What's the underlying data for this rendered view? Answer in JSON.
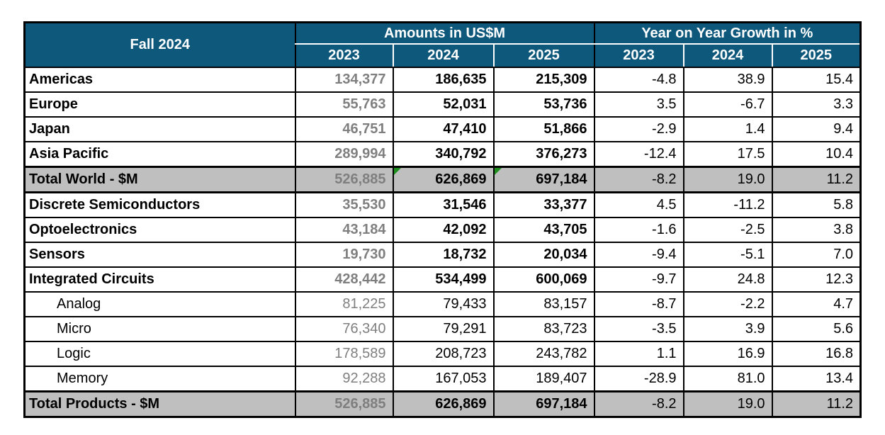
{
  "colors": {
    "header_bg": "#0e587c",
    "header_text": "#ffffff",
    "total_row_bg": "#bfbfbf",
    "muted_2023_text": "#7f7f7f",
    "grid_border": "#000000",
    "flag_triangle_green": "#1e8e1e"
  },
  "chart_data": {
    "type": "table",
    "title": "Fall 2024",
    "column_groups": [
      {
        "label": "Amounts in US$M",
        "columns": [
          "2023",
          "2024",
          "2025"
        ]
      },
      {
        "label": "Year on Year Growth in %",
        "columns": [
          "2023",
          "2024",
          "2025"
        ]
      }
    ],
    "rows": [
      {
        "label": "Americas",
        "style": "region",
        "amounts": [
          "134,377",
          "186,635",
          "215,309"
        ],
        "growth": [
          "-4.8",
          "38.9",
          "15.4"
        ]
      },
      {
        "label": "Europe",
        "style": "region",
        "amounts": [
          "55,763",
          "52,031",
          "53,736"
        ],
        "growth": [
          "3.5",
          "-6.7",
          "3.3"
        ]
      },
      {
        "label": "Japan",
        "style": "region",
        "amounts": [
          "46,751",
          "47,410",
          "51,866"
        ],
        "growth": [
          "-2.9",
          "1.4",
          "9.4"
        ]
      },
      {
        "label": "Asia Pacific",
        "style": "region",
        "amounts": [
          "289,994",
          "340,792",
          "376,273"
        ],
        "growth": [
          "-12.4",
          "17.5",
          "10.4"
        ]
      },
      {
        "label": "Total World - $M",
        "style": "total",
        "markers": [
          false,
          true,
          true
        ],
        "amounts": [
          "526,885",
          "626,869",
          "697,184"
        ],
        "growth": [
          "-8.2",
          "19.0",
          "11.2"
        ]
      },
      {
        "label": "Discrete Semiconductors",
        "style": "region",
        "amounts": [
          "35,530",
          "31,546",
          "33,377"
        ],
        "growth": [
          "4.5",
          "-11.2",
          "5.8"
        ]
      },
      {
        "label": "Optoelectronics",
        "style": "region",
        "amounts": [
          "43,184",
          "42,092",
          "43,705"
        ],
        "growth": [
          "-1.6",
          "-2.5",
          "3.8"
        ]
      },
      {
        "label": "Sensors",
        "style": "region",
        "amounts": [
          "19,730",
          "18,732",
          "20,034"
        ],
        "growth": [
          "-9.4",
          "-5.1",
          "7.0"
        ]
      },
      {
        "label": "Integrated Circuits",
        "style": "region",
        "amounts": [
          "428,442",
          "534,499",
          "600,069"
        ],
        "growth": [
          "-9.7",
          "24.8",
          "12.3"
        ]
      },
      {
        "label": "Analog",
        "style": "sub",
        "amounts": [
          "81,225",
          "79,433",
          "83,157"
        ],
        "growth": [
          "-8.7",
          "-2.2",
          "4.7"
        ]
      },
      {
        "label": "Micro",
        "style": "sub",
        "amounts": [
          "76,340",
          "79,291",
          "83,723"
        ],
        "growth": [
          "-3.5",
          "3.9",
          "5.6"
        ]
      },
      {
        "label": "Logic",
        "style": "sub",
        "amounts": [
          "178,589",
          "208,723",
          "243,782"
        ],
        "growth": [
          "1.1",
          "16.9",
          "16.8"
        ]
      },
      {
        "label": "Memory",
        "style": "sub",
        "amounts": [
          "92,288",
          "167,053",
          "189,407"
        ],
        "growth": [
          "-28.9",
          "81.0",
          "13.4"
        ]
      },
      {
        "label": "Total Products - $M",
        "style": "total",
        "amounts": [
          "526,885",
          "626,869",
          "697,184"
        ],
        "growth": [
          "-8.2",
          "19.0",
          "11.2"
        ]
      }
    ]
  }
}
